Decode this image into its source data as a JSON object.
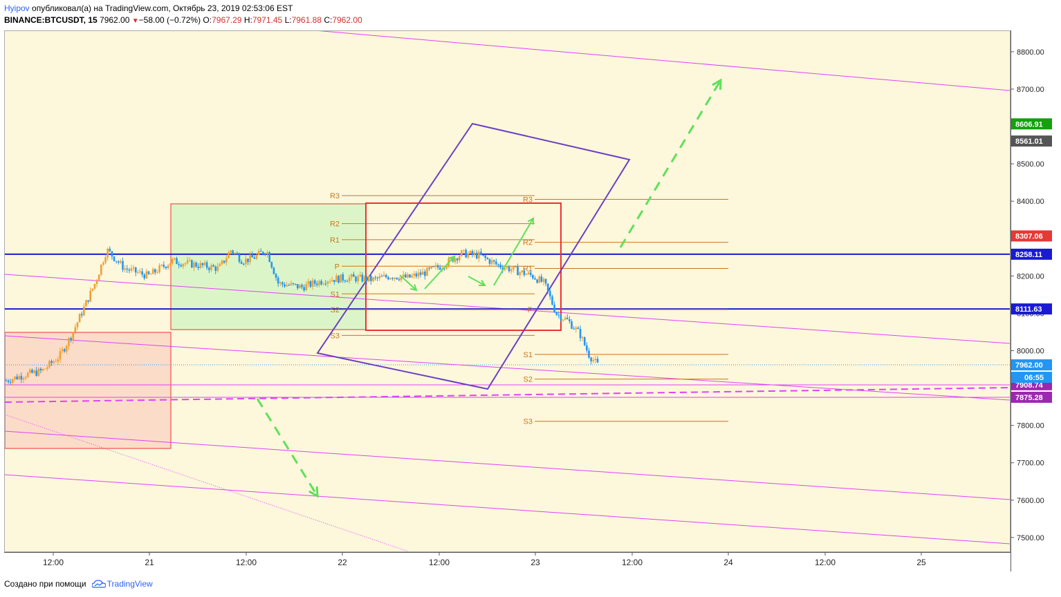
{
  "header": {
    "author": "Hyipov",
    "published": " опубликовал(а) на TradingView.com, Октябрь 23, 2019 02:53:06 EST",
    "symbol": "BINANCE:BTCUSDT, 15",
    "last": "7962.00",
    "triangle": "▼",
    "change": "−58.00 (−0.72%)",
    "o_label": "O:",
    "o": "7967.29",
    "h_label": "H:",
    "h": "7971.45",
    "l_label": "L:",
    "l": "7961.88",
    "c_label": "C:",
    "c": "7962.00"
  },
  "footer": {
    "text": "Создано при помощи",
    "brand": "TradingView"
  },
  "colors": {
    "candle_up": "#f0a030",
    "candle_down": "#2196f3",
    "magenta": "#e040fb",
    "blue_level": "#1a1ad4",
    "purple": "#6a3fc2",
    "green_arrow": "#5ee05a",
    "pivot": "#c8761e",
    "red_box": "#f03030",
    "green_box": "#dcf5c8",
    "pink_box": "#fbdcc9"
  },
  "chart_data": {
    "type": "candlestick",
    "symbol": "BINANCE:BTCUSDT",
    "interval": "15",
    "ylim": [
      7430,
      8880
    ],
    "y_ticks": [
      7500,
      7600,
      7700,
      7800,
      7900,
      8000,
      8100,
      8200,
      8300,
      8400,
      8500,
      8600,
      8700,
      8800
    ],
    "y_tick_labels": [
      "7500.00",
      "7600.00",
      "7700.00",
      "7800.00",
      "",
      "8000.00",
      "8100.00",
      "8200.00",
      "8300.00",
      "8400.00",
      "8500.00",
      "",
      "8700.00",
      "8800.00"
    ],
    "x_labels": [
      "12:00",
      "21",
      "12:00",
      "22",
      "12:00",
      "23",
      "12:00",
      "24",
      "12:00",
      "25"
    ],
    "price_path": [
      [
        0.0,
        7920
      ],
      [
        0.03,
        7935
      ],
      [
        0.06,
        7945
      ],
      [
        0.09,
        7985
      ],
      [
        0.11,
        8040
      ],
      [
        0.13,
        8110
      ],
      [
        0.15,
        8180
      ],
      [
        0.17,
        8270
      ],
      [
        0.2,
        8220
      ],
      [
        0.24,
        8200
      ],
      [
        0.28,
        8240
      ],
      [
        0.32,
        8230
      ],
      [
        0.36,
        8220
      ],
      [
        0.38,
        8270
      ],
      [
        0.4,
        8240
      ],
      [
        0.42,
        8250
      ],
      [
        0.44,
        8270
      ],
      [
        0.46,
        8180
      ],
      [
        0.5,
        8170
      ],
      [
        0.54,
        8190
      ],
      [
        0.58,
        8195
      ],
      [
        0.62,
        8190
      ],
      [
        0.65,
        8200
      ],
      [
        0.68,
        8195
      ],
      [
        0.71,
        8210
      ],
      [
        0.74,
        8230
      ],
      [
        0.77,
        8260
      ],
      [
        0.8,
        8255
      ],
      [
        0.83,
        8230
      ],
      [
        0.86,
        8215
      ],
      [
        0.89,
        8200
      ],
      [
        0.91,
        8180
      ],
      [
        0.93,
        8100
      ],
      [
        0.95,
        8080
      ],
      [
        0.97,
        8045
      ],
      [
        0.985,
        7990
      ],
      [
        1.0,
        7962
      ]
    ],
    "price_tags": [
      {
        "value": 8606.91,
        "label": "8606.91",
        "bg": "#13a10e"
      },
      {
        "value": 8561.01,
        "label": "8561.01",
        "bg": "#555555"
      },
      {
        "value": 8307.06,
        "label": "8307.06",
        "bg": "#e53935"
      },
      {
        "value": 8258.11,
        "label": "8258.11",
        "bg": "#1a1ad4"
      },
      {
        "value": 8111.63,
        "label": "8111.63",
        "bg": "#1a1ad4"
      },
      {
        "value": 7962.0,
        "label": "7962.00",
        "bg": "#2196f3"
      },
      {
        "value": 7908.74,
        "label": "7908.74",
        "bg": "#9c27b0"
      },
      {
        "value": 7875.28,
        "label": "7875.28",
        "bg": "#9c27b0"
      }
    ],
    "countdown": "06:55",
    "horizontal_levels": [
      8258.11,
      8111.63
    ],
    "pivots_left": [
      {
        "label": "R3",
        "value": 8415
      },
      {
        "label": "R2",
        "value": 8340
      },
      {
        "label": "R1",
        "value": 8297
      },
      {
        "label": "P",
        "value": 8226
      },
      {
        "label": "S1",
        "value": 8152
      },
      {
        "label": "S2",
        "value": 8110
      },
      {
        "label": "S3",
        "value": 8041
      }
    ],
    "pivots_right": [
      {
        "label": "R3",
        "value": 8405
      },
      {
        "label": "R2",
        "value": 8290
      },
      {
        "label": "R1",
        "value": 8220
      },
      {
        "label": "P",
        "value": 8110
      },
      {
        "label": "S1",
        "value": 7990
      },
      {
        "label": "S2",
        "value": 7924
      },
      {
        "label": "S3",
        "value": 7811
      }
    ]
  }
}
